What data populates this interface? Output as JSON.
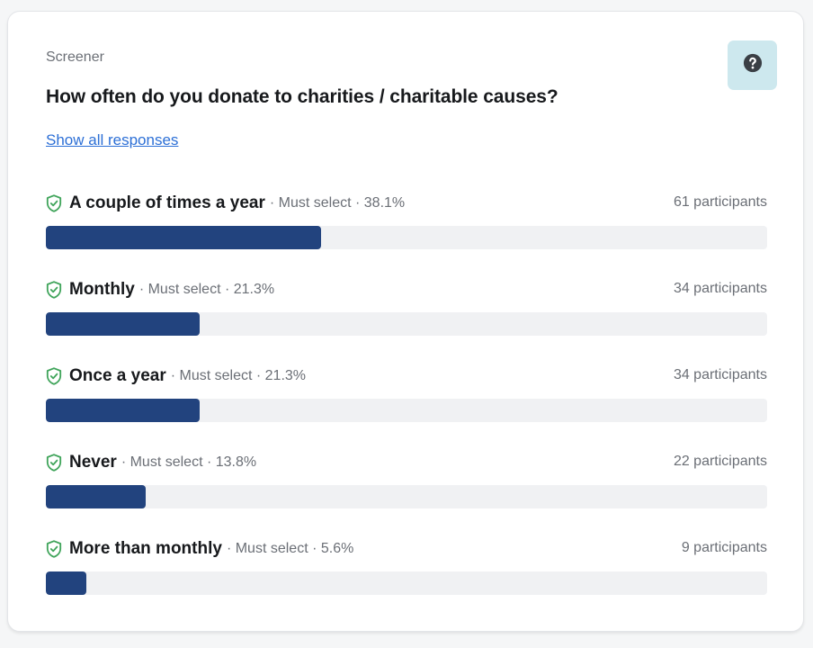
{
  "card": {
    "section_label": "Screener",
    "question": "How often do you donate to charities / charitable causes?",
    "show_all_link": "Show all responses",
    "help_icon": "question-circle-icon"
  },
  "colors": {
    "bar_fill": "#22437e",
    "bar_track": "#f0f1f3",
    "check_icon": "#3fa45a",
    "help_bg": "#cde8ee",
    "link": "#2c6fd6"
  },
  "options": [
    {
      "label": "A couple of times a year",
      "meta": "· Must select · 38.1%",
      "percent": 38.1,
      "count": "61 participants",
      "icon": "shield-check-icon"
    },
    {
      "label": "Monthly",
      "meta": "· Must select · 21.3%",
      "percent": 21.3,
      "count": "34 participants",
      "icon": "shield-check-icon"
    },
    {
      "label": "Once a year",
      "meta": "· Must select · 21.3%",
      "percent": 21.3,
      "count": "34 participants",
      "icon": "shield-check-icon"
    },
    {
      "label": "Never",
      "meta": "· Must select · 13.8%",
      "percent": 13.8,
      "count": "22 participants",
      "icon": "shield-check-icon"
    },
    {
      "label": "More than monthly",
      "meta": "· Must select · 5.6%",
      "percent": 5.6,
      "count": "9 participants",
      "icon": "shield-check-icon"
    }
  ],
  "chart_data": {
    "type": "bar",
    "orientation": "horizontal",
    "title": "How often do you donate to charities / charitable causes?",
    "subtitle": "Screener",
    "categories": [
      "A couple of times a year",
      "Monthly",
      "Once a year",
      "Never",
      "More than monthly"
    ],
    "values": [
      38.1,
      21.3,
      21.3,
      13.8,
      5.6
    ],
    "participants": [
      61,
      34,
      34,
      22,
      9
    ],
    "annotations": [
      "Must select",
      "Must select",
      "Must select",
      "Must select",
      "Must select"
    ],
    "xlabel": "",
    "ylabel": "",
    "xlim": [
      0,
      100
    ],
    "grid": false,
    "legend": "none"
  }
}
